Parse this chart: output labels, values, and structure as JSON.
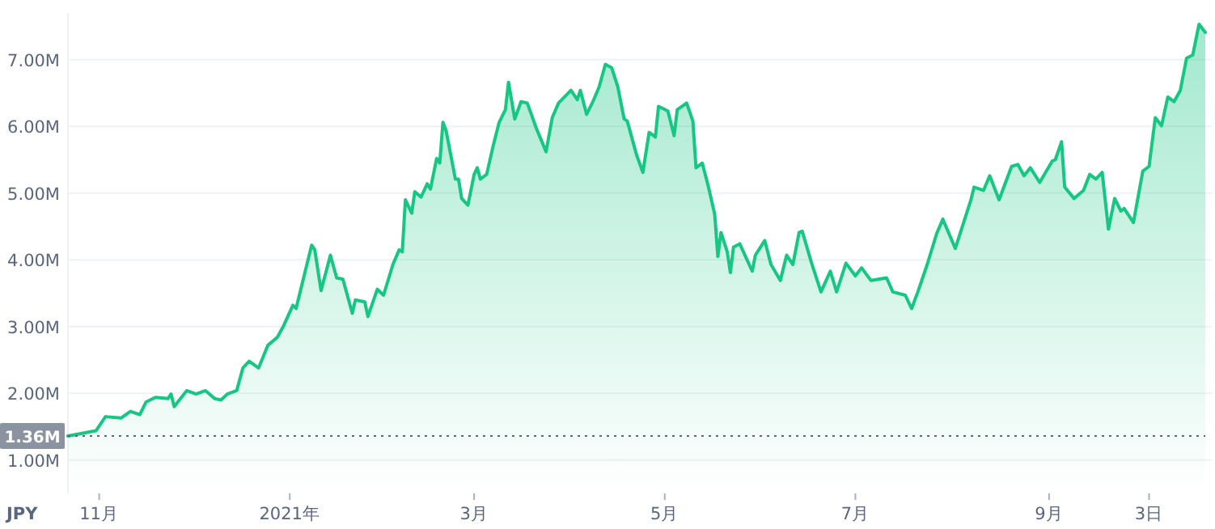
{
  "chart_data": {
    "type": "area",
    "ylabel": "JPY",
    "color": "#16c784",
    "grid": "y",
    "marker": "none",
    "line_style": "solid",
    "xlim": [
      "2020-10-22",
      "2021-10-21"
    ],
    "xticks": [
      {
        "value": "2020-11-01",
        "label": "11月"
      },
      {
        "value": "2021-01-01",
        "label": "2021年"
      },
      {
        "value": "2021-03-01",
        "label": "3月"
      },
      {
        "value": "2021-05-01",
        "label": "5月"
      },
      {
        "value": "2021-07-01",
        "label": "7月"
      },
      {
        "value": "2021-09-01",
        "label": "9月"
      },
      {
        "value": "2021-10-03",
        "label": "3日"
      }
    ],
    "ylim": [
      0.5,
      7.7
    ],
    "yticks": [
      {
        "value": 1,
        "label": "1.00M"
      },
      {
        "value": 2,
        "label": "2.00M"
      },
      {
        "value": 3,
        "label": "3.00M"
      },
      {
        "value": 4,
        "label": "4.00M"
      },
      {
        "value": 5,
        "label": "5.00M"
      },
      {
        "value": 6,
        "label": "6.00M"
      },
      {
        "value": 7,
        "label": "7.00M"
      }
    ],
    "ref_lines": [
      {
        "axis": "y",
        "value": 1.36,
        "label": "1.36M",
        "line_style": "dotted",
        "color": "#5c6574"
      }
    ],
    "x": [
      "2020-10-22",
      "2020-10-31",
      "2020-11-03",
      "2020-11-08",
      "2020-11-11",
      "2020-11-14",
      "2020-11-16",
      "2020-11-19",
      "2020-11-23",
      "2020-11-24",
      "2020-11-25",
      "2020-11-29",
      "2020-12-02",
      "2020-12-05",
      "2020-12-08",
      "2020-12-10",
      "2020-12-12",
      "2020-12-15",
      "2020-12-17",
      "2020-12-19",
      "2020-12-22",
      "2020-12-25",
      "2020-12-28",
      "2020-12-30",
      "2021-01-02",
      "2021-01-03",
      "2021-01-08",
      "2021-01-09",
      "2021-01-11",
      "2021-01-14",
      "2021-01-16",
      "2021-01-18",
      "2021-01-21",
      "2021-01-22",
      "2021-01-25",
      "2021-01-26",
      "2021-01-29",
      "2021-01-31",
      "2021-02-03",
      "2021-02-05",
      "2021-02-06",
      "2021-02-07",
      "2021-02-09",
      "2021-02-10",
      "2021-02-12",
      "2021-02-14",
      "2021-02-15",
      "2021-02-17",
      "2021-02-18",
      "2021-02-19",
      "2021-02-20",
      "2021-02-23",
      "2021-02-24",
      "2021-02-25",
      "2021-02-27",
      "2021-03-01",
      "2021-03-02",
      "2021-03-03",
      "2021-03-05",
      "2021-03-07",
      "2021-03-09",
      "2021-03-11",
      "2021-03-12",
      "2021-03-14",
      "2021-03-16",
      "2021-03-18",
      "2021-03-21",
      "2021-03-24",
      "2021-03-26",
      "2021-03-28",
      "2021-04-01",
      "2021-04-03",
      "2021-04-04",
      "2021-04-06",
      "2021-04-08",
      "2021-04-10",
      "2021-04-12",
      "2021-04-14",
      "2021-04-16",
      "2021-04-18",
      "2021-04-19",
      "2021-04-22",
      "2021-04-24",
      "2021-04-26",
      "2021-04-28",
      "2021-04-29",
      "2021-05-02",
      "2021-05-04",
      "2021-05-05",
      "2021-05-08",
      "2021-05-10",
      "2021-05-11",
      "2021-05-13",
      "2021-05-15",
      "2021-05-17",
      "2021-05-18",
      "2021-05-19",
      "2021-05-21",
      "2021-05-22",
      "2021-05-23",
      "2021-05-25",
      "2021-05-29",
      "2021-05-30",
      "2021-06-02",
      "2021-06-04",
      "2021-06-07",
      "2021-06-09",
      "2021-06-11",
      "2021-06-13",
      "2021-06-14",
      "2021-06-17",
      "2021-06-20",
      "2021-06-23",
      "2021-06-25",
      "2021-06-28",
      "2021-07-01",
      "2021-07-03",
      "2021-07-06",
      "2021-07-11",
      "2021-07-13",
      "2021-07-17",
      "2021-07-19",
      "2021-07-21",
      "2021-07-24",
      "2021-07-27",
      "2021-07-29",
      "2021-08-02",
      "2021-08-07",
      "2021-08-08",
      "2021-08-11",
      "2021-08-13",
      "2021-08-16",
      "2021-08-20",
      "2021-08-22",
      "2021-08-24",
      "2021-08-26",
      "2021-08-29",
      "2021-09-02",
      "2021-09-03",
      "2021-09-05",
      "2021-09-06",
      "2021-09-09",
      "2021-09-12",
      "2021-09-14",
      "2021-09-16",
      "2021-09-18",
      "2021-09-20",
      "2021-09-22",
      "2021-09-24",
      "2021-09-25",
      "2021-09-28",
      "2021-10-01",
      "2021-10-03",
      "2021-10-05",
      "2021-10-07",
      "2021-10-09",
      "2021-10-11",
      "2021-10-13",
      "2021-10-15",
      "2021-10-17",
      "2021-10-19",
      "2021-10-21"
    ],
    "values": [
      1.36,
      1.44,
      1.65,
      1.63,
      1.73,
      1.68,
      1.87,
      1.94,
      1.92,
      1.99,
      1.8,
      2.04,
      1.99,
      2.04,
      1.92,
      1.9,
      1.99,
      2.04,
      2.38,
      2.48,
      2.38,
      2.72,
      2.84,
      3.01,
      3.32,
      3.27,
      4.22,
      4.15,
      3.54,
      4.07,
      3.73,
      3.71,
      3.2,
      3.4,
      3.37,
      3.15,
      3.56,
      3.47,
      3.93,
      4.15,
      4.12,
      4.9,
      4.7,
      5.02,
      4.94,
      5.14,
      5.06,
      5.52,
      5.45,
      6.06,
      5.94,
      5.21,
      5.21,
      4.92,
      4.82,
      5.28,
      5.38,
      5.21,
      5.28,
      5.69,
      6.06,
      6.25,
      6.66,
      6.11,
      6.37,
      6.35,
      5.96,
      5.62,
      6.13,
      6.35,
      6.54,
      6.4,
      6.54,
      6.18,
      6.37,
      6.59,
      6.93,
      6.88,
      6.59,
      6.11,
      6.08,
      5.57,
      5.31,
      5.91,
      5.84,
      6.3,
      6.23,
      5.86,
      6.25,
      6.35,
      6.08,
      5.38,
      5.45,
      5.09,
      4.68,
      4.05,
      4.41,
      4.12,
      3.81,
      4.19,
      4.24,
      3.83,
      4.07,
      4.29,
      3.93,
      3.69,
      4.07,
      3.93,
      4.41,
      4.43,
      3.95,
      3.52,
      3.83,
      3.52,
      3.95,
      3.76,
      3.88,
      3.69,
      3.73,
      3.52,
      3.47,
      3.27,
      3.52,
      3.93,
      4.39,
      4.61,
      4.17,
      4.9,
      5.09,
      5.04,
      5.26,
      4.9,
      5.4,
      5.43,
      5.26,
      5.38,
      5.16,
      5.48,
      5.5,
      5.77,
      5.09,
      4.92,
      5.04,
      5.28,
      5.21,
      5.31,
      4.46,
      4.92,
      4.73,
      4.77,
      4.56,
      5.33,
      5.4,
      6.13,
      6.01,
      6.44,
      6.37,
      6.54,
      7.02,
      7.07,
      7.53,
      7.41
    ]
  }
}
